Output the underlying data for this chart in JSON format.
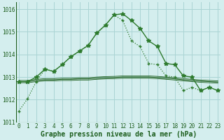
{
  "title": "Graphe pression niveau de la mer (hPa)",
  "background_color": "#d4eeee",
  "grid_color": "#aad4d4",
  "dark_color": "#1a5c1a",
  "mid_color": "#2d7a2d",
  "x_hours": [
    0,
    1,
    2,
    3,
    4,
    5,
    6,
    7,
    8,
    9,
    10,
    11,
    12,
    13,
    14,
    15,
    16,
    17,
    18,
    19,
    20,
    21,
    22,
    23
  ],
  "series_arc": [
    1012.8,
    1012.8,
    1013.0,
    1013.35,
    1013.25,
    1013.55,
    1013.9,
    1014.15,
    1014.4,
    1014.95,
    1015.3,
    1015.75,
    1015.8,
    1015.5,
    1015.15,
    1014.6,
    1014.35,
    1013.6,
    1013.55,
    1013.05,
    1013.0,
    1012.4,
    1012.55,
    1012.4
  ],
  "series_rising": [
    1011.5,
    1012.05,
    1012.8,
    1013.35,
    1013.25,
    1013.55,
    1013.9,
    1014.15,
    1014.4,
    1014.95,
    1015.3,
    1015.75,
    1015.5,
    1014.6,
    1014.35,
    1013.6,
    1013.55,
    1013.05,
    1013.0,
    1012.4,
    1012.55,
    1012.4,
    null,
    null
  ],
  "series_flat": [
    1012.8,
    1012.8,
    1012.85,
    1012.88,
    1012.88,
    1012.9,
    1012.9,
    1012.92,
    1012.92,
    1012.95,
    1012.97,
    1012.98,
    1013.0,
    1013.0,
    1013.0,
    1013.0,
    1012.98,
    1012.95,
    1012.92,
    1012.88,
    1012.85,
    1012.82,
    1012.8,
    1012.78
  ],
  "ylim": [
    1011.0,
    1016.3
  ],
  "yticks": [
    1011,
    1012,
    1013,
    1014,
    1015,
    1016
  ],
  "xlim": [
    -0.3,
    23.3
  ],
  "xticks": [
    0,
    1,
    2,
    3,
    4,
    5,
    6,
    7,
    8,
    9,
    10,
    11,
    12,
    13,
    14,
    15,
    16,
    17,
    18,
    19,
    20,
    21,
    22,
    23
  ],
  "tick_fontsize": 5.5,
  "title_fontsize": 7.0
}
